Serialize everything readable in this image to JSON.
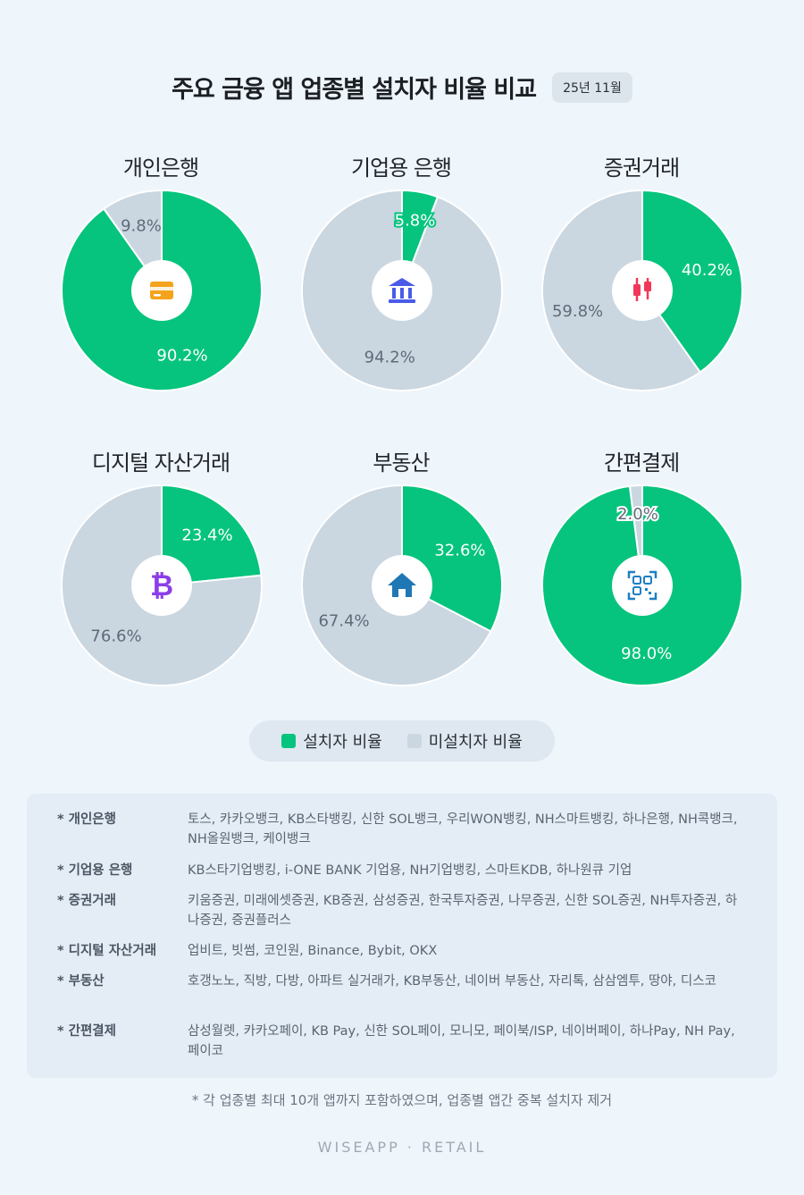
{
  "header": {
    "title": "주요 금융 앱 업종별 설치자 비율 비교",
    "date_badge": "25년 11월"
  },
  "colors": {
    "installed": "#06c47d",
    "not_installed": "#cad6e0"
  },
  "chart_data": [
    {
      "type": "pie",
      "title": "개인은행",
      "icon": "card-icon",
      "slices": [
        {
          "name": "설치자 비율",
          "value": 90.2,
          "label": "90.2%"
        },
        {
          "name": "미설치자 비율",
          "value": 9.8,
          "label": "9.8%"
        }
      ]
    },
    {
      "type": "pie",
      "title": "기업용 은행",
      "icon": "bank-building-icon",
      "slices": [
        {
          "name": "설치자 비율",
          "value": 5.8,
          "label": "5.8%"
        },
        {
          "name": "미설치자 비율",
          "value": 94.2,
          "label": "94.2%"
        }
      ]
    },
    {
      "type": "pie",
      "title": "증권거래",
      "icon": "candlestick-icon",
      "slices": [
        {
          "name": "설치자 비율",
          "value": 40.2,
          "label": "40.2%"
        },
        {
          "name": "미설치자 비율",
          "value": 59.8,
          "label": "59.8%"
        }
      ]
    },
    {
      "type": "pie",
      "title": "디지털 자산거래",
      "icon": "bitcoin-icon",
      "slices": [
        {
          "name": "설치자 비율",
          "value": 23.4,
          "label": "23.4%"
        },
        {
          "name": "미설치자 비율",
          "value": 76.6,
          "label": "76.6%"
        }
      ]
    },
    {
      "type": "pie",
      "title": "부동산",
      "icon": "house-icon",
      "slices": [
        {
          "name": "설치자 비율",
          "value": 32.6,
          "label": "32.6%"
        },
        {
          "name": "미설치자 비율",
          "value": 67.4,
          "label": "67.4%"
        }
      ]
    },
    {
      "type": "pie",
      "title": "간편결제",
      "icon": "qr-code-icon",
      "slices": [
        {
          "name": "설치자 비율",
          "value": 98.0,
          "label": "98.0%"
        },
        {
          "name": "미설치자 비율",
          "value": 2.0,
          "label": "2.0%"
        }
      ]
    }
  ],
  "legend": {
    "installed": "설치자 비율",
    "not_installed": "미설치자 비율"
  },
  "notes": [
    {
      "category": "* 개인은행",
      "apps": "토스, 카카오뱅크, KB스타뱅킹, 신한 SOL뱅크, 우리WON뱅킹, NH스마트뱅킹, 하나은행, NH콕뱅크, NH올원뱅크, 케이뱅크"
    },
    {
      "category": "* 기업용 은행",
      "apps": "KB스타기업뱅킹, i-ONE BANK 기업용, NH기업뱅킹, 스마트KDB, 하나원큐 기업"
    },
    {
      "category": "* 증권거래",
      "apps": "키움증권, 미래에셋증권, KB증권, 삼성증권, 한국투자증권, 나무증권, 신한 SOL증권, NH투자증권, 하나증권, 증권플러스"
    },
    {
      "category": "* 디지털 자산거래",
      "apps": "업비트, 빗썸, 코인원, Binance, Bybit, OKX"
    },
    {
      "category": "* 부동산",
      "apps": "호갱노노, 직방, 다방, 아파트 실거래가, KB부동산, 네이버 부동산, 자리톡, 삼삼엠투, 땅야, 디스코"
    },
    {
      "category": "* 간편결제",
      "apps": "삼성월렛, 카카오페이, KB Pay, 신한 SOL페이, 모니모, 페이북/ISP, 네이버페이, 하나Pay, NH Pay, 페이코"
    }
  ],
  "footnote": "* 각 업종별 최대 10개 앱까지 포함하였으며, 업종별 앱간 중복 설치자 제거",
  "brand": "WISEAPP · RETAIL"
}
